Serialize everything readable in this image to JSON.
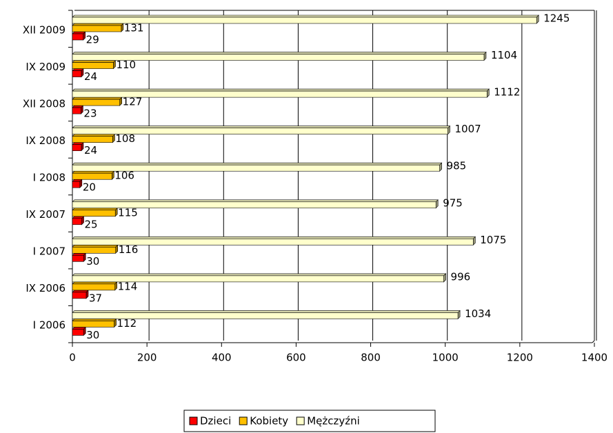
{
  "chart_data": {
    "type": "bar",
    "orientation": "horizontal",
    "categories": [
      "I 2006",
      "IX 2006",
      "I 2007",
      "IX 2007",
      "I 2008",
      "IX 2008",
      "XII 2008",
      "IX 2009",
      "XII 2009"
    ],
    "series": [
      {
        "name": "Dzieci",
        "color": "#ff0000",
        "values": [
          30,
          37,
          30,
          25,
          20,
          24,
          23,
          24,
          29
        ]
      },
      {
        "name": "Kobiety",
        "color": "#ffc000",
        "values": [
          112,
          114,
          116,
          115,
          106,
          108,
          127,
          110,
          131
        ]
      },
      {
        "name": "Mężczyźni",
        "color": "#ffffcc",
        "values": [
          1034,
          996,
          1075,
          975,
          985,
          1007,
          1112,
          1104,
          1245
        ]
      }
    ],
    "xlim": [
      0,
      1400
    ],
    "xticks": [
      0,
      200,
      400,
      600,
      800,
      1000,
      1200,
      1400
    ],
    "grid": true,
    "legend": "bottom"
  }
}
